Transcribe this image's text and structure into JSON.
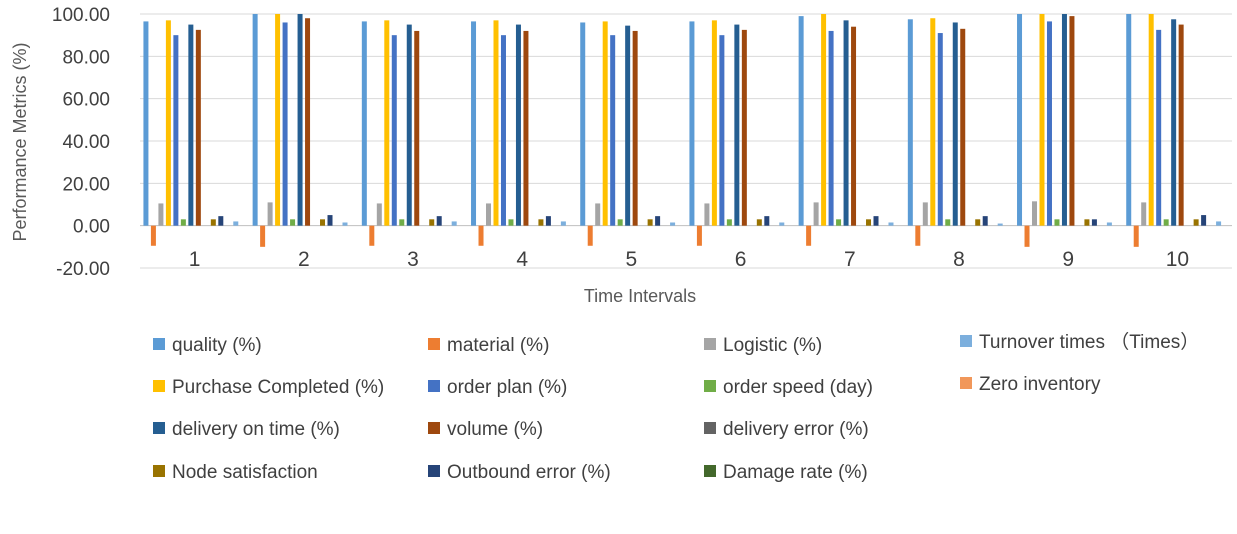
{
  "chart_data": {
    "type": "bar",
    "xlabel": "Time Intervals",
    "ylabel": "Performance Metrics (%)",
    "ylim": [
      -20,
      100
    ],
    "yticks": [
      "-20.00",
      "0.00",
      "20.00",
      "40.00",
      "60.00",
      "80.00",
      "100.00"
    ],
    "ytick_values": [
      -20,
      0,
      20,
      40,
      60,
      80,
      100
    ],
    "categories": [
      "1",
      "2",
      "3",
      "4",
      "5",
      "6",
      "7",
      "8",
      "9",
      "10"
    ],
    "grid": true,
    "legend_position": "bottom",
    "series": [
      {
        "name": "quality (%)",
        "color": "#5B9BD5",
        "values": [
          96.5,
          100,
          96.5,
          96.5,
          96,
          96.5,
          99,
          97.5,
          100,
          100
        ]
      },
      {
        "name": "material (%)",
        "color": "#ED7D31",
        "values": [
          -9.5,
          -10,
          -9.5,
          -9.5,
          -9.5,
          -9.5,
          -9.5,
          -9.5,
          -10,
          -10
        ]
      },
      {
        "name": "Logistic (%)",
        "color": "#A5A5A5",
        "values": [
          10.5,
          11,
          10.5,
          10.5,
          10.5,
          10.5,
          11,
          11,
          11.5,
          11
        ]
      },
      {
        "name": "Purchase Completed (%)",
        "color": "#FFC000",
        "values": [
          97,
          100,
          97,
          97,
          96.5,
          97,
          100,
          98,
          100,
          100
        ]
      },
      {
        "name": "order plan (%)",
        "color": "#4472C4",
        "values": [
          90,
          96,
          90,
          90,
          90,
          90,
          92,
          91,
          96.5,
          92.5
        ]
      },
      {
        "name": "order speed (day)",
        "color": "#70AD47",
        "values": [
          3,
          3,
          3,
          3,
          3,
          3,
          3,
          3,
          3,
          3
        ]
      },
      {
        "name": "delivery on time (%)",
        "color": "#255E91",
        "values": [
          95,
          100,
          95,
          95,
          94.5,
          95,
          97,
          96,
          100,
          97.5
        ]
      },
      {
        "name": "volume (%)",
        "color": "#9E480E",
        "values": [
          92.5,
          98,
          92,
          92,
          92,
          92.5,
          94,
          93,
          99,
          95
        ]
      },
      {
        "name": "delivery error (%)",
        "color": "#636363",
        "values": [
          0,
          0,
          0,
          0,
          0,
          0,
          0,
          0,
          0,
          0
        ]
      },
      {
        "name": "Node satisfaction",
        "color": "#997300",
        "values": [
          3,
          3,
          3,
          3,
          3,
          3,
          3,
          3,
          3,
          3
        ]
      },
      {
        "name": "Outbound error (%)",
        "color": "#264478",
        "values": [
          4.5,
          5,
          4.5,
          4.5,
          4.5,
          4.5,
          4.5,
          4.5,
          3,
          5
        ]
      },
      {
        "name": "Damage rate (%)",
        "color": "#43682B",
        "values": [
          0,
          0,
          0,
          0,
          0,
          0,
          0,
          0,
          0,
          0
        ]
      },
      {
        "name": "Turnover times （Times）",
        "color": "#7CAFDD",
        "values": [
          2,
          1.5,
          2,
          2,
          1.5,
          1.5,
          1.5,
          1,
          1.5,
          2
        ]
      },
      {
        "name": "Zero inventory",
        "color": "#F1975A",
        "values": [
          0,
          0,
          0,
          0,
          0,
          0,
          0,
          0,
          0,
          0
        ]
      }
    ]
  }
}
